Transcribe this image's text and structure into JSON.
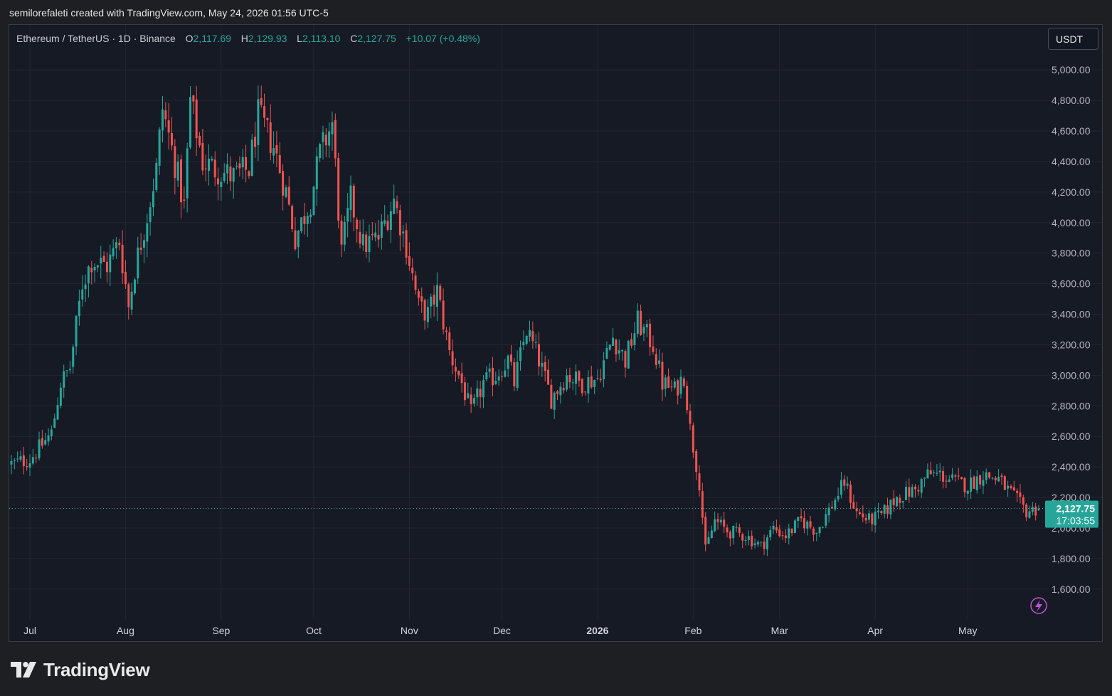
{
  "header": {
    "credit": "semilorefaleti created with TradingView.com, May 24, 2026 01:56 UTC-5"
  },
  "legend": {
    "symbol": "Ethereum / TetherUS · 1D · Binance",
    "open_label": "O",
    "open": "2,117.69",
    "high_label": "H",
    "high": "2,129.93",
    "low_label": "L",
    "low": "2,113.10",
    "close_label": "C",
    "close": "2,127.75",
    "change": "+10.07 (+0.48%)"
  },
  "currency": "USDT",
  "price_tag": {
    "price": "2,127.75",
    "countdown": "17:03:55"
  },
  "footer": {
    "brand": "TradingView"
  },
  "icons": {
    "flash": "lightning-icon",
    "logo": "tradingview-logo-icon"
  },
  "colors": {
    "up": "#26a69a",
    "down": "#ef5350",
    "background": "#161a25",
    "grid": "#232632"
  },
  "chart_data": {
    "type": "candlestick",
    "ylim": [
      1450,
      5150
    ],
    "y_ticks": [
      "5,000.00",
      "4,800.00",
      "4,600.00",
      "4,400.00",
      "4,200.00",
      "4,000.00",
      "3,800.00",
      "3,600.00",
      "3,400.00",
      "3,200.00",
      "3,000.00",
      "2,800.00",
      "2,600.00",
      "2,400.00",
      "2,200.00",
      "2,000.00",
      "1,800.00",
      "1,600.00"
    ],
    "y_tick_values": [
      5000,
      4800,
      4600,
      4400,
      4200,
      4000,
      3800,
      3600,
      3400,
      3200,
      3000,
      2800,
      2600,
      2400,
      2200,
      2000,
      1800,
      1600
    ],
    "x_ticks": [
      "Jul",
      "Aug",
      "Sep",
      "Oct",
      "Nov",
      "Dec",
      "2026",
      "Feb",
      "Mar",
      "Apr",
      "May"
    ],
    "x_tick_dates": [
      "2025-07-01",
      "2025-08-01",
      "2025-09-01",
      "2025-10-01",
      "2025-11-01",
      "2025-12-01",
      "2026-01-01",
      "2026-02-01",
      "2026-03-01",
      "2026-04-01",
      "2026-05-01"
    ],
    "x_tick_bold": [
      false,
      false,
      false,
      false,
      false,
      false,
      true,
      false,
      false,
      false,
      false
    ],
    "first_date": "2025-06-25",
    "last_date": "2026-05-24",
    "last_close": 2127.75,
    "close_path": [
      [
        "2025-06-25",
        2420
      ],
      [
        "2025-07-01",
        2450
      ],
      [
        "2025-07-08",
        2620
      ],
      [
        "2025-07-11",
        2950
      ],
      [
        "2025-07-14",
        3050
      ],
      [
        "2025-07-18",
        3600
      ],
      [
        "2025-07-21",
        3750
      ],
      [
        "2025-07-26",
        3720
      ],
      [
        "2025-07-30",
        3880
      ],
      [
        "2025-08-02",
        3450
      ],
      [
        "2025-08-04",
        3700
      ],
      [
        "2025-08-08",
        4050
      ],
      [
        "2025-08-11",
        4350
      ],
      [
        "2025-08-13",
        4750
      ],
      [
        "2025-08-18",
        4300
      ],
      [
        "2025-08-20",
        4100
      ],
      [
        "2025-08-22",
        4800
      ],
      [
        "2025-08-26",
        4400
      ],
      [
        "2025-08-30",
        4350
      ],
      [
        "2025-09-05",
        4300
      ],
      [
        "2025-09-10",
        4350
      ],
      [
        "2025-09-13",
        4700
      ],
      [
        "2025-09-18",
        4500
      ],
      [
        "2025-09-22",
        4200
      ],
      [
        "2025-09-25",
        3900
      ],
      [
        "2025-09-30",
        4150
      ],
      [
        "2025-10-03",
        4450
      ],
      [
        "2025-10-07",
        4650
      ],
      [
        "2025-10-10",
        3800
      ],
      [
        "2025-10-13",
        4150
      ],
      [
        "2025-10-17",
        3850
      ],
      [
        "2025-10-22",
        3900
      ],
      [
        "2025-10-27",
        4150
      ],
      [
        "2025-10-31",
        3850
      ],
      [
        "2025-11-04",
        3450
      ],
      [
        "2025-11-07",
        3400
      ],
      [
        "2025-11-10",
        3550
      ],
      [
        "2025-11-14",
        3150
      ],
      [
        "2025-11-18",
        2950
      ],
      [
        "2025-11-21",
        2750
      ],
      [
        "2025-11-25",
        2950
      ],
      [
        "2025-11-29",
        3000
      ],
      [
        "2025-12-03",
        3100
      ],
      [
        "2025-12-05",
        2950
      ],
      [
        "2025-12-09",
        3300
      ],
      [
        "2025-12-13",
        3100
      ],
      [
        "2025-12-17",
        2850
      ],
      [
        "2025-12-22",
        3000
      ],
      [
        "2025-12-27",
        2950
      ],
      [
        "2026-01-01",
        2980
      ],
      [
        "2026-01-06",
        3250
      ],
      [
        "2026-01-10",
        3100
      ],
      [
        "2026-01-14",
        3350
      ],
      [
        "2026-01-19",
        3200
      ],
      [
        "2026-01-22",
        2950
      ],
      [
        "2026-01-26",
        2900
      ],
      [
        "2026-01-29",
        3000
      ],
      [
        "2026-01-31",
        2650
      ],
      [
        "2026-02-03",
        2300
      ],
      [
        "2026-02-05",
        1850
      ],
      [
        "2026-02-08",
        2050
      ],
      [
        "2026-02-12",
        1980
      ],
      [
        "2026-02-18",
        1950
      ],
      [
        "2026-02-23",
        1880
      ],
      [
        "2026-02-27",
        2000
      ],
      [
        "2026-03-03",
        1950
      ],
      [
        "2026-03-08",
        2050
      ],
      [
        "2026-03-13",
        1980
      ],
      [
        "2026-03-18",
        2150
      ],
      [
        "2026-03-22",
        2300
      ],
      [
        "2026-03-26",
        2100
      ],
      [
        "2026-03-30",
        2050
      ],
      [
        "2026-04-03",
        2080
      ],
      [
        "2026-04-08",
        2200
      ],
      [
        "2026-04-14",
        2250
      ],
      [
        "2026-04-18",
        2350
      ],
      [
        "2026-04-22",
        2350
      ],
      [
        "2026-04-27",
        2300
      ],
      [
        "2026-05-01",
        2280
      ],
      [
        "2026-05-06",
        2350
      ],
      [
        "2026-05-11",
        2320
      ],
      [
        "2026-05-16",
        2200
      ],
      [
        "2026-05-20",
        2110
      ],
      [
        "2026-05-24",
        2127.75
      ]
    ]
  }
}
